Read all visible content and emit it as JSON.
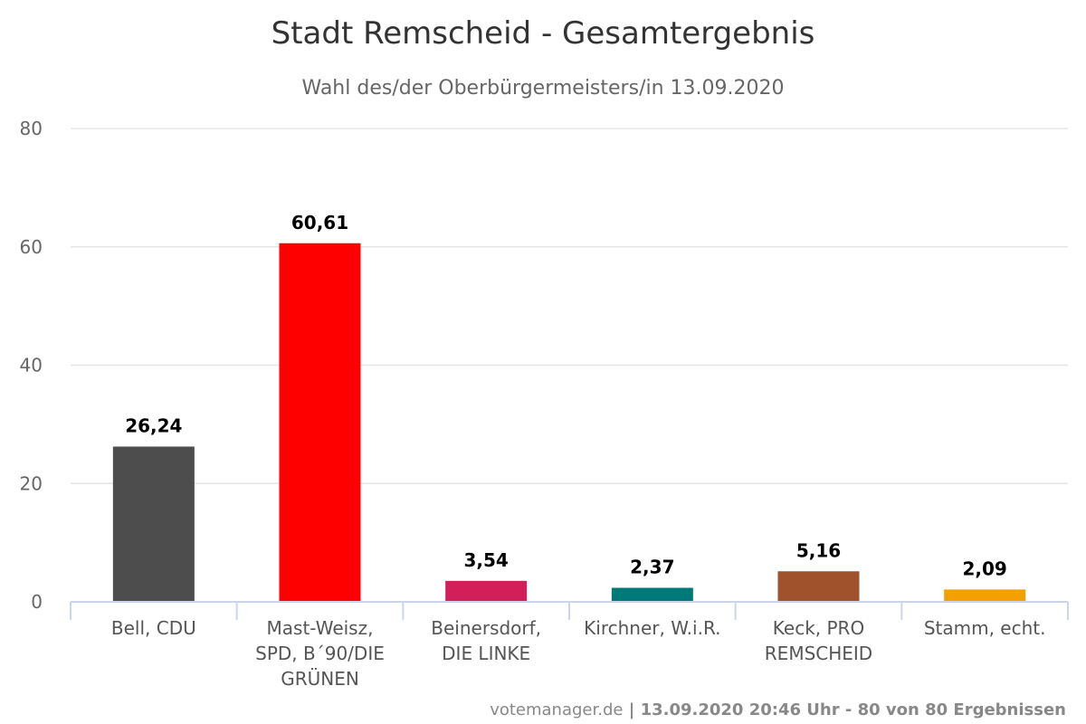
{
  "chart_data": {
    "type": "bar",
    "title": "Stadt Remscheid - Gesamtergebnis",
    "subtitle": "Wahl des/der Oberbürgermeisters/in 13.09.2020",
    "categories": [
      [
        "Bell, CDU"
      ],
      [
        "Mast-Weisz,",
        "SPD, B´90/DIE",
        "GRÜNEN"
      ],
      [
        "Beinersdorf,",
        "DIE LINKE"
      ],
      [
        "Kirchner, W.i.R."
      ],
      [
        "Keck, PRO",
        "REMSCHEID"
      ],
      [
        "Stamm, echt."
      ]
    ],
    "values": [
      26.24,
      60.61,
      3.54,
      2.37,
      5.16,
      2.09
    ],
    "value_labels": [
      "26,24",
      "60,61",
      "3,54",
      "2,37",
      "5,16",
      "2,09"
    ],
    "colors": [
      "#4d4d4d",
      "#ff0000",
      "#d21f5a",
      "#007a78",
      "#a0522d",
      "#f4a000"
    ],
    "ylim": [
      0,
      80
    ],
    "yticks": [
      0,
      20,
      40,
      60,
      80
    ],
    "grid": true,
    "legend": "none"
  },
  "credits": {
    "site": "votemanager.de",
    "separator": " | ",
    "detail": "13.09.2020 20:46 Uhr - 80 von 80 Ergebnissen"
  }
}
